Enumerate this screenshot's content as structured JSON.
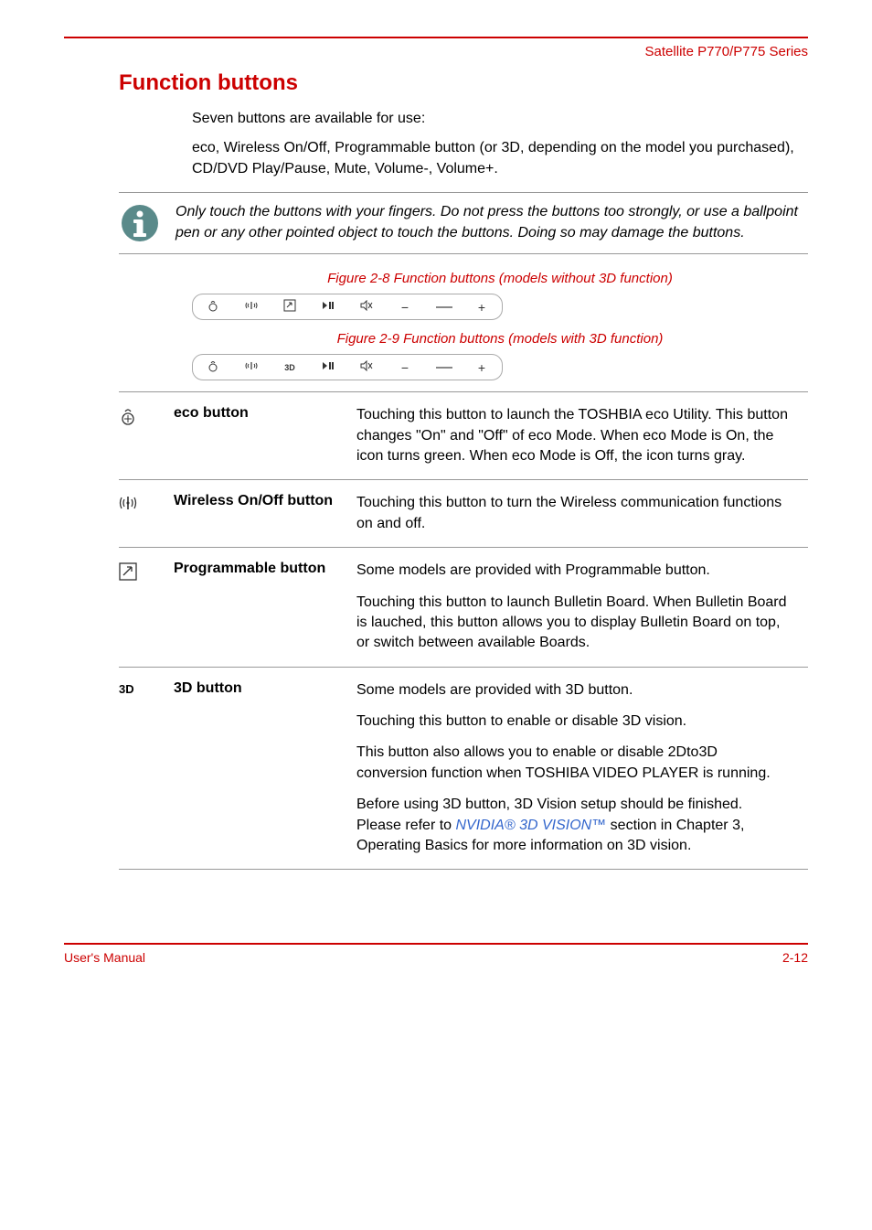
{
  "header": {
    "series": "Satellite P770/P775 Series"
  },
  "section": {
    "heading": "Function buttons",
    "intro1": "Seven buttons are available for use:",
    "intro2": "eco, Wireless On/Off, Programmable button (or 3D, depending on the model you purchased), CD/DVD Play/Pause, Mute, Volume-, Volume+."
  },
  "note": {
    "text": "Only touch the buttons with your fingers. Do not press the buttons too strongly, or use a ballpoint pen or any other pointed object to touch the buttons. Doing so may damage the buttons."
  },
  "figures": {
    "caption1": "Figure 2-8 Function buttons (models without 3D function)",
    "caption2": "Figure 2-9 Function buttons (models with 3D function)",
    "strip1_slot3": "prog",
    "strip2_slot3": "3D"
  },
  "definitions": [
    {
      "icon": "eco",
      "term": "eco button",
      "paragraphs": [
        "Touching this button to launch the TOSHBIA eco Utility. This button changes \"On\" and \"Off\" of eco Mode. When eco Mode is On, the icon turns green. When eco Mode is Off, the icon turns gray."
      ]
    },
    {
      "icon": "wireless",
      "term": "Wireless On/Off button",
      "paragraphs": [
        "Touching this button to turn the Wireless communication functions on and off."
      ]
    },
    {
      "icon": "prog",
      "term": "Programmable button",
      "paragraphs": [
        "Some models are provided with Programmable button.",
        "Touching this button to launch Bulletin Board. When Bulletin Board is lauched, this button allows you to display Bulletin Board on top, or switch between available Boards."
      ]
    },
    {
      "icon": "3d",
      "term": "3D button",
      "paragraphs": [
        "Some models are provided with 3D button.",
        "Touching this button to enable or disable 3D vision.",
        "This button also allows you to enable or disable 2Dto3D conversion function when TOSHIBA VIDEO PLAYER is running.",
        "Before using 3D button, 3D Vision setup should be finished. Please refer to {{LINK}} section in Chapter 3, Operating Basics for more information on 3D vision."
      ],
      "link_text": "NVIDIA® 3D VISION™"
    }
  ],
  "footer": {
    "left": "User's Manual",
    "right": "2-12"
  }
}
